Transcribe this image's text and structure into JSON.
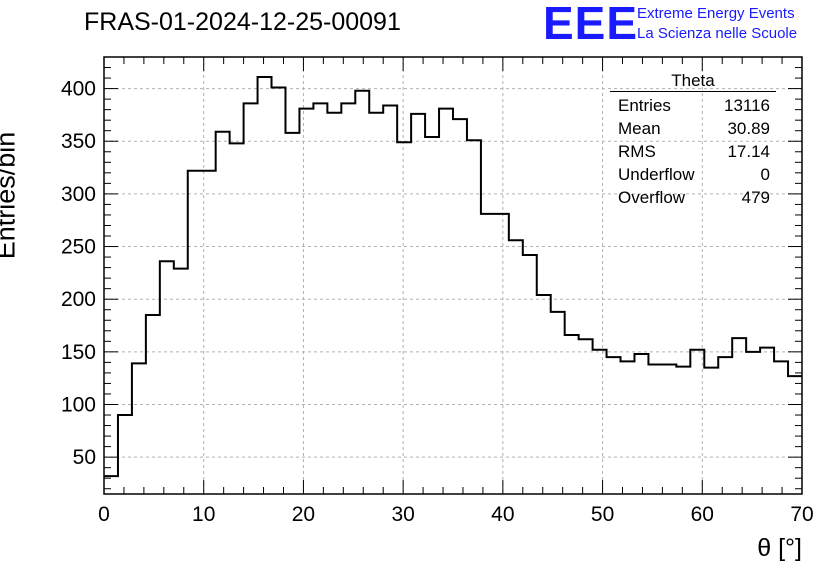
{
  "header": {
    "title": "FRAS-01-2024-12-25-00091",
    "logo_text": "EEE",
    "logo_line1": "Extreme Energy Events",
    "logo_line2": "La Scienza nelle Scuole"
  },
  "stats": {
    "title": "Theta",
    "rows": [
      {
        "label": "Entries",
        "value": "13116"
      },
      {
        "label": "Mean",
        "value": "30.89"
      },
      {
        "label": "RMS",
        "value": "17.14"
      },
      {
        "label": "Underflow",
        "value": "0"
      },
      {
        "label": "Overflow",
        "value": "479"
      }
    ]
  },
  "colors": {
    "accent": "#1a1aff",
    "line": "#000000",
    "grid": "#b0b0b0"
  },
  "chart_data": {
    "type": "histogram",
    "title": "FRAS-01-2024-12-25-00091",
    "xlabel": "θ [°]",
    "ylabel": "Entries/bin",
    "xlim": [
      0,
      70
    ],
    "ylim": [
      15,
      430
    ],
    "grid": true,
    "xticks": [
      0,
      10,
      20,
      30,
      40,
      50,
      60,
      70
    ],
    "yticks": [
      50,
      100,
      150,
      200,
      250,
      300,
      350,
      400
    ],
    "bin_width": 1.4,
    "values": [
      32,
      90,
      139,
      185,
      236,
      229,
      322,
      322,
      359,
      348,
      386,
      411,
      401,
      358,
      381,
      386,
      377,
      386,
      398,
      377,
      384,
      349,
      376,
      354,
      381,
      371,
      351,
      281,
      281,
      256,
      242,
      204,
      188,
      166,
      162,
      152,
      145,
      141,
      148,
      138,
      138,
      136,
      152,
      135,
      145,
      163,
      150,
      154,
      141,
      127
    ]
  }
}
